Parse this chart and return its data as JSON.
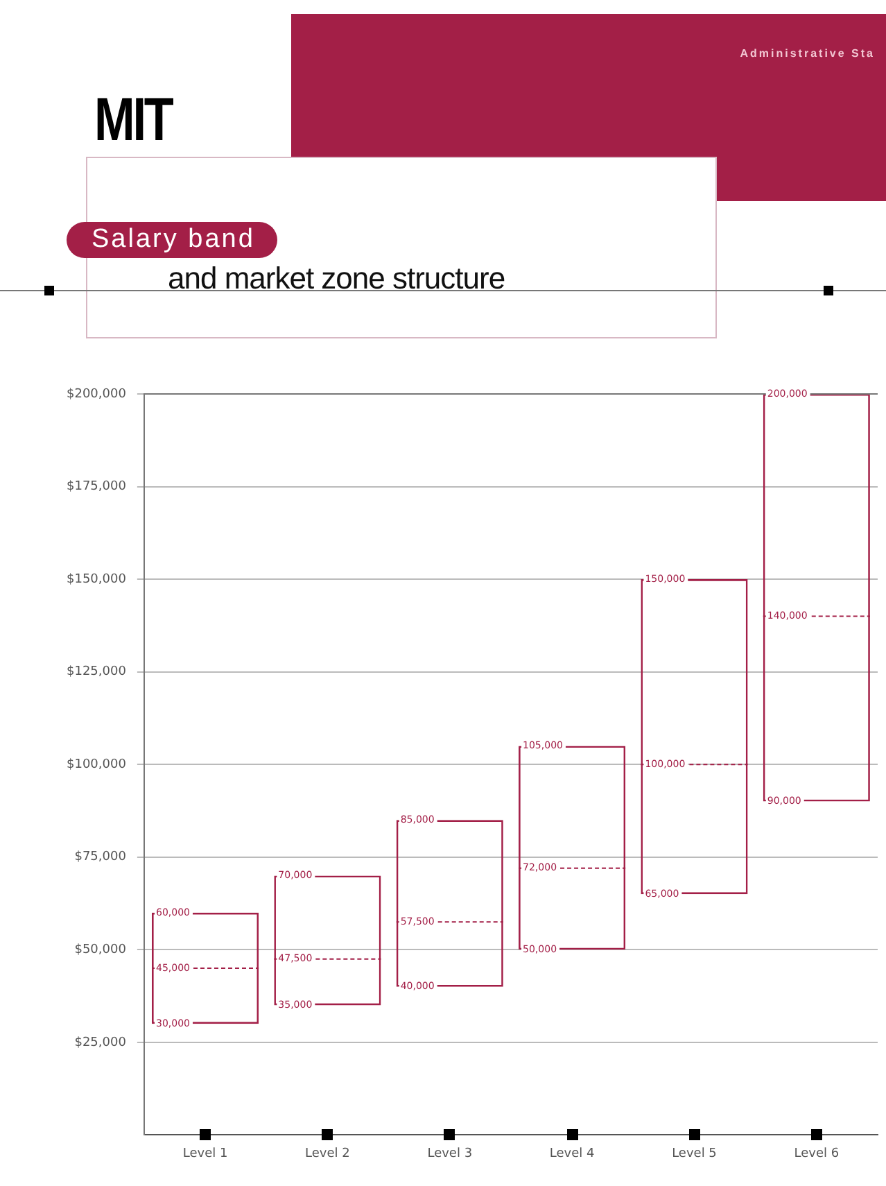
{
  "chart_data": {
    "type": "box",
    "title": "Salary band",
    "subtitle": "and market zone structure",
    "categories": [
      "Level 1",
      "Level 2",
      "Level 3",
      "Level 4",
      "Level 5",
      "Level 6"
    ],
    "series": [
      {
        "color": "#a31f47",
        "line_style": "dashed",
        "boxes": [
          {
            "low": 30000,
            "q1": 30000,
            "median": 45000,
            "q3": 60000,
            "high": 60000
          },
          {
            "low": 35000,
            "q1": 35000,
            "median": 47500,
            "q3": 70000,
            "high": 70000
          },
          {
            "low": 40000,
            "q1": 40000,
            "median": 57500,
            "q3": 85000,
            "high": 85000
          },
          {
            "low": 50000,
            "q1": 50000,
            "median": 72000,
            "q3": 105000,
            "high": 105000
          },
          {
            "low": 65000,
            "q1": 65000,
            "median": 100000,
            "q3": 150000,
            "high": 150000
          },
          {
            "low": 90000,
            "q1": 90000,
            "median": 140000,
            "q3": 200000,
            "high": 200000
          }
        ]
      }
    ],
    "ylim": [
      0,
      200000
    ],
    "yticks": [
      {
        "value": 25000,
        "label": "$25,000"
      },
      {
        "value": 50000,
        "label": "$50,000"
      },
      {
        "value": 75000,
        "label": "$75,000"
      },
      {
        "value": 100000,
        "label": "$100,000"
      },
      {
        "value": 125000,
        "label": "$125,000"
      },
      {
        "value": 150000,
        "label": "$150,000"
      },
      {
        "value": 175000,
        "label": "$175,000"
      },
      {
        "value": 200000,
        "label": "$200,000"
      }
    ],
    "grid": "y",
    "legend": false,
    "annotations": [
      "MIT",
      "Administrative Sta",
      {
        "text": "60,000",
        "x": "Level 1",
        "y": 60000
      },
      {
        "text": "45,000",
        "x": "Level 1",
        "y": 45000
      },
      {
        "text": "30,000",
        "x": "Level 1",
        "y": 30000
      },
      {
        "text": "70,000",
        "x": "Level 2",
        "y": 70000
      },
      {
        "text": "47,500",
        "x": "Level 2",
        "y": 47500
      },
      {
        "text": "35,000",
        "x": "Level 2",
        "y": 35000
      },
      {
        "text": "85,000",
        "x": "Level 3",
        "y": 85000
      },
      {
        "text": "57,500",
        "x": "Level 3",
        "y": 57500
      },
      {
        "text": "40,000",
        "x": "Level 3",
        "y": 40000
      },
      {
        "text": "105,000",
        "x": "Level 4",
        "y": 105000
      },
      {
        "text": "72,000",
        "x": "Level 4",
        "y": 72000
      },
      {
        "text": "50,000",
        "x": "Level 4",
        "y": 50000
      },
      {
        "text": "150,000",
        "x": "Level 5",
        "y": 150000
      },
      {
        "text": "100,000",
        "x": "Level 5",
        "y": 100000
      },
      {
        "text": "65,000",
        "x": "Level 5",
        "y": 65000
      },
      {
        "text": "200,000",
        "x": "Level 6",
        "y": 200000
      },
      {
        "text": "140,000",
        "x": "Level 6",
        "y": 140000
      },
      {
        "text": "90,000",
        "x": "Level 6",
        "y": 90000
      }
    ]
  }
}
